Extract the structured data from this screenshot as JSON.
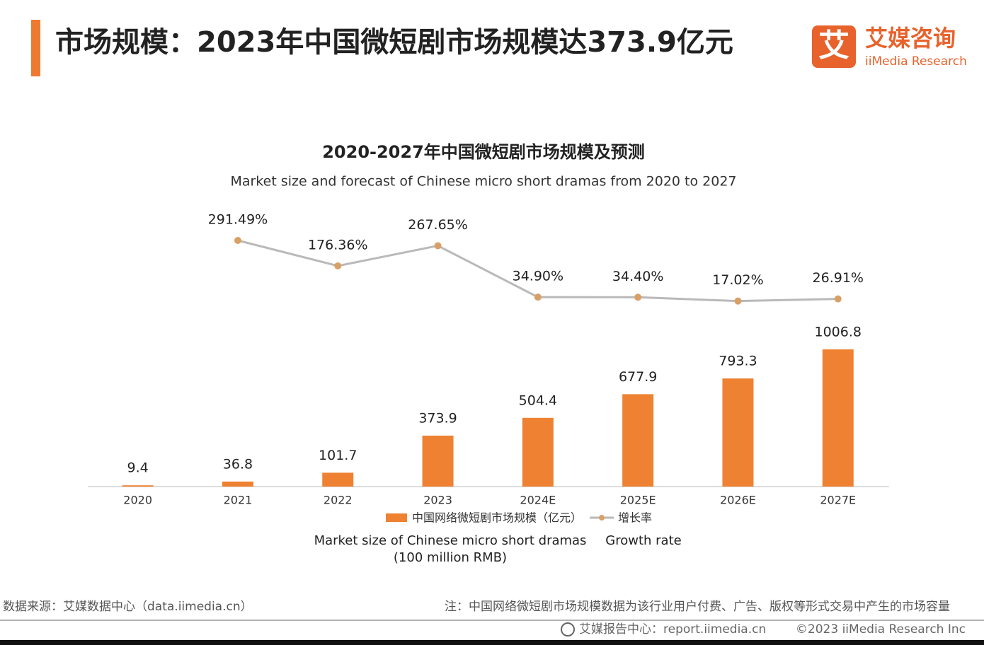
{
  "header": {
    "title": "市场规模：2023年中国微短剧市场规模达373.9亿元",
    "logo_mark": "艾",
    "logo_name": "艾媒咨询",
    "logo_en": "iiMedia Research"
  },
  "chart_data": {
    "type": "bar-line",
    "title": "2020-2027年中国微短剧市场规模及预测",
    "subtitle": "Market size and forecast of Chinese micro short dramas from 2020 to 2027",
    "categories": [
      "2020",
      "2021",
      "2022",
      "2023",
      "2024E",
      "2025E",
      "2026E",
      "2027E"
    ],
    "series": [
      {
        "name": "中国网络微短剧市场规模（亿元）",
        "name_en": [
          "Market size of Chinese micro short dramas",
          "(100 million RMB)"
        ],
        "type": "bar",
        "color": "#ee8232",
        "values": [
          9.4,
          36.8,
          101.7,
          373.9,
          504.4,
          677.9,
          793.3,
          1006.8
        ]
      },
      {
        "name": "增长率",
        "name_en": [
          "Growth rate"
        ],
        "type": "line",
        "color": "#b9b9b9",
        "marker_color": "#d9a066",
        "values": [
          null,
          291.49,
          176.36,
          267.65,
          34.9,
          34.4,
          17.02,
          26.91
        ],
        "value_labels": [
          null,
          "291.49%",
          "176.36%",
          "267.65%",
          "34.90%",
          "34.40%",
          "17.02%",
          "26.91%"
        ]
      }
    ]
  },
  "footer": {
    "source": "数据来源：艾媒数据中心（data.iimedia.cn）",
    "note": "注：中国网络微短剧市场规模数据为该行业用户付费、广告、版权等形式交易中产生的市场容量",
    "report": "艾媒报告中心：report.iimedia.cn",
    "copyright": "©2023  iiMedia Research Inc"
  }
}
